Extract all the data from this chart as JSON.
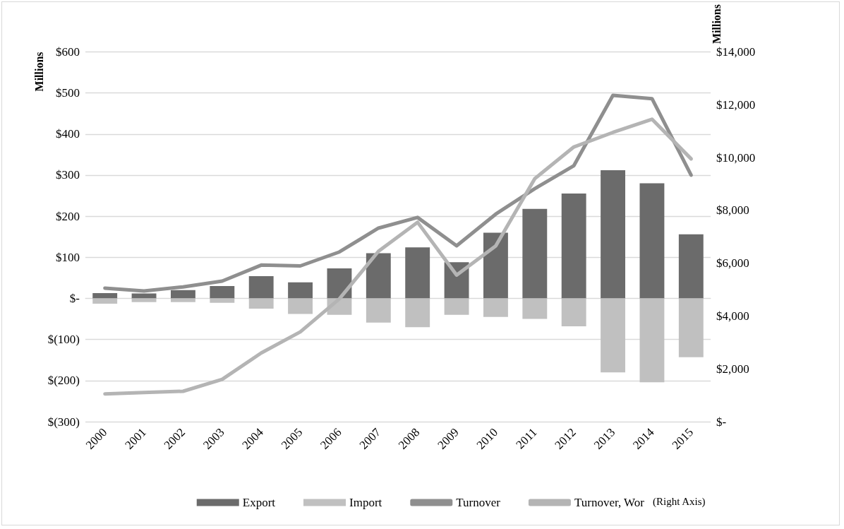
{
  "chart_data": {
    "type": "bar",
    "stacked": true,
    "ylabel": "Millions",
    "y2label": "Millions",
    "categories": [
      "2000",
      "2001",
      "2002",
      "2003",
      "2004",
      "2005",
      "2006",
      "2007",
      "2008",
      "2009",
      "2010",
      "2011",
      "2012",
      "2013",
      "2014",
      "2015"
    ],
    "series": [
      {
        "name": "Export",
        "color": "#6b6b6b",
        "values": [
          13,
          12,
          20,
          30,
          54,
          39,
          73,
          110,
          124,
          88,
          160,
          218,
          255,
          312,
          280,
          156
        ]
      },
      {
        "name": "Import",
        "color": "#c0c0c0",
        "values": [
          -13,
          -9,
          -9,
          -11,
          -25,
          -38,
          -40,
          -59,
          -70,
          -40,
          -45,
          -50,
          -68,
          -180,
          -204,
          -143
        ]
      },
      {
        "name": "Turnover",
        "type": "line",
        "color": "#8f8f8f",
        "values": [
          25,
          18,
          28,
          42,
          81,
          79,
          113,
          171,
          197,
          128,
          205,
          267,
          323,
          494,
          486,
          300
        ]
      },
      {
        "name": "Turnover, Wor",
        "type": "line",
        "axis": "y2",
        "color": "#b4b4b4",
        "values": [
          1050,
          1100,
          1150,
          1600,
          2600,
          3400,
          4650,
          6450,
          7550,
          5550,
          6650,
          9200,
          10400,
          10950,
          11450,
          9950
        ]
      }
    ],
    "ylim": [
      -300,
      600
    ],
    "yticks": [
      {
        "value": -300,
        "label": "$(300)"
      },
      {
        "value": -200,
        "label": "$(200)"
      },
      {
        "value": -100,
        "label": "$(100)"
      },
      {
        "value": 0,
        "label": "$-"
      },
      {
        "value": 100,
        "label": "$100"
      },
      {
        "value": 200,
        "label": "$200"
      },
      {
        "value": 300,
        "label": "$300"
      },
      {
        "value": 400,
        "label": "$400"
      },
      {
        "value": 500,
        "label": "$500"
      },
      {
        "value": 600,
        "label": "$600"
      }
    ],
    "y2lim": [
      0,
      14000
    ],
    "y2ticks": [
      {
        "value": 0,
        "label": "$-"
      },
      {
        "value": 2000,
        "label": "$2,000"
      },
      {
        "value": 4000,
        "label": "$4,000"
      },
      {
        "value": 6000,
        "label": "$6,000"
      },
      {
        "value": 8000,
        "label": "$8,000"
      },
      {
        "value": 10000,
        "label": "$10,000"
      },
      {
        "value": 12000,
        "label": "$12,000"
      },
      {
        "value": 14000,
        "label": "$14,000"
      }
    ],
    "grid": "y",
    "legend": "bottom",
    "marker": "none",
    "line_style": "solid",
    "annotations": [
      "(Right Axis)"
    ]
  }
}
